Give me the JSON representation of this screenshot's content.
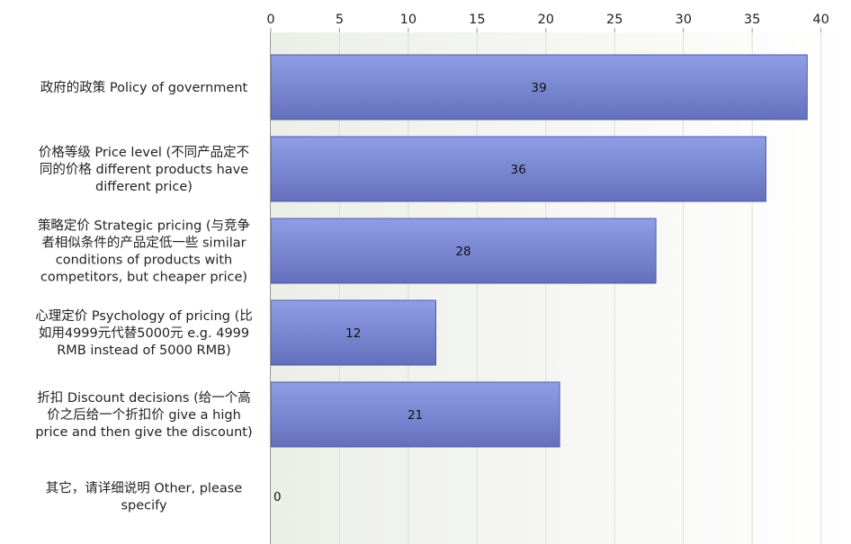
{
  "chart_data": {
    "type": "bar",
    "orientation": "horizontal",
    "categories": [
      "政府的政策 Policy of government",
      "价格等级 Price level (不同产品定不同的价格 different products have different price)",
      "策略定价 Strategic pricing (与竞争者相似条件的产品定低一些 similar conditions of products with competitors, but cheaper price)",
      "心理定价 Psychology of pricing (比如用4999元代替5000元 e.g. 4999 RMB instead of 5000 RMB)",
      "折扣 Discount decisions (给一个高价之后给一个折扣价 give a high price and then give the discount)",
      "其它，请详细说明 Other, please specify"
    ],
    "category_lines": [
      [
        "政府的政策 Policy of government"
      ],
      [
        "价格等级 Price level (不同产品定不",
        "同的价格 different products have",
        "different price)"
      ],
      [
        "策略定价 Strategic pricing (与竞争",
        "者相似条件的产品定低一些 similar",
        "conditions of products with",
        "competitors, but cheaper price)"
      ],
      [
        "心理定价 Psychology of pricing (比",
        "如用4999元代替5000元 e.g. 4999",
        "RMB instead of 5000 RMB)"
      ],
      [
        "折扣 Discount decisions (给一个高",
        "价之后给一个折扣价 give a high",
        "price and then give the discount)"
      ],
      [
        "其它，请详细说明 Other, please",
        "specify"
      ]
    ],
    "values": [
      39,
      36,
      28,
      12,
      21,
      0
    ],
    "xlim": [
      0,
      41.5
    ],
    "xticks": [
      0,
      5,
      10,
      15,
      20,
      25,
      30,
      35,
      40
    ],
    "grid": true,
    "colors": {
      "bar_top": "#8f9ee6",
      "bar_bottom": "#6470bd",
      "bar_edge": "#4e5aa6",
      "plot_bg": "#f3f4f0",
      "grid": "#dcdfd8"
    }
  }
}
